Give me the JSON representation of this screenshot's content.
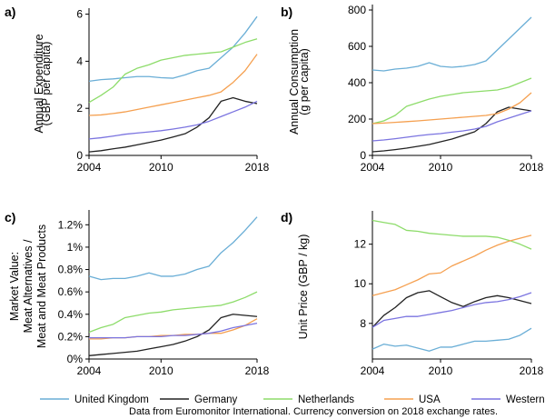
{
  "figure": {
    "note": "Data from Euromonitor International. Currency conversion on 2018 exchange rates."
  },
  "colors": {
    "United Kingdom": "#6aaed6",
    "Germany": "#222222",
    "Netherlands": "#8ddc6a",
    "USA": "#f5a050",
    "Western Europe": "#7b74e0"
  },
  "legend": [
    "United Kingdom",
    "Germany",
    "Netherlands",
    "USA",
    "Western Europe"
  ],
  "chart_data": [
    {
      "type": "line",
      "panel_label": "a)",
      "ylabel": [
        "Annual Expenditure",
        "(GBP per capita)"
      ],
      "xlim": [
        2004,
        2018
      ],
      "ylim": [
        0,
        6.1
      ],
      "xticks": [
        "2004",
        "2010",
        "2018"
      ],
      "yticks": [
        {
          "v": 0,
          "label": "0"
        },
        {
          "v": 2,
          "label": "2"
        },
        {
          "v": 4,
          "label": "4"
        },
        {
          "v": 6,
          "label": "6"
        }
      ],
      "x": [
        2004,
        2005,
        2006,
        2007,
        2008,
        2009,
        2010,
        2011,
        2012,
        2013,
        2014,
        2015,
        2016,
        2017,
        2018
      ],
      "series": [
        {
          "name": "United Kingdom",
          "values": [
            3.15,
            3.22,
            3.25,
            3.3,
            3.35,
            3.35,
            3.3,
            3.28,
            3.42,
            3.6,
            3.7,
            4.15,
            4.6,
            5.2,
            5.9
          ]
        },
        {
          "name": "Germany",
          "values": [
            0.15,
            0.2,
            0.28,
            0.35,
            0.45,
            0.55,
            0.65,
            0.78,
            0.92,
            1.2,
            1.6,
            2.3,
            2.45,
            2.3,
            2.2
          ]
        },
        {
          "name": "Netherlands",
          "values": [
            2.25,
            2.55,
            2.9,
            3.45,
            3.7,
            3.85,
            4.05,
            4.15,
            4.25,
            4.3,
            4.35,
            4.4,
            4.6,
            4.8,
            4.95
          ]
        },
        {
          "name": "USA",
          "values": [
            1.7,
            1.72,
            1.78,
            1.85,
            1.95,
            2.05,
            2.15,
            2.25,
            2.35,
            2.45,
            2.55,
            2.7,
            3.1,
            3.6,
            4.3
          ]
        },
        {
          "name": "Western Europe",
          "values": [
            0.7,
            0.75,
            0.82,
            0.9,
            0.95,
            1.0,
            1.05,
            1.12,
            1.2,
            1.3,
            1.45,
            1.65,
            1.85,
            2.05,
            2.3
          ]
        }
      ]
    },
    {
      "type": "line",
      "panel_label": "b)",
      "ylabel": [
        "Annual Consumption",
        "(g per capita)"
      ],
      "xlim": [
        2004,
        2018
      ],
      "ylim": [
        0,
        810
      ],
      "xticks": [
        "2004",
        "2010",
        "2018"
      ],
      "yticks": [
        {
          "v": 0,
          "label": "0"
        },
        {
          "v": 200,
          "label": "200"
        },
        {
          "v": 400,
          "label": "400"
        },
        {
          "v": 600,
          "label": "600"
        },
        {
          "v": 800,
          "label": "800"
        }
      ],
      "x": [
        2004,
        2005,
        2006,
        2007,
        2008,
        2009,
        2010,
        2011,
        2012,
        2013,
        2014,
        2015,
        2016,
        2017,
        2018
      ],
      "series": [
        {
          "name": "United Kingdom",
          "values": [
            470,
            465,
            475,
            480,
            490,
            510,
            490,
            485,
            490,
            500,
            520,
            580,
            640,
            700,
            760
          ]
        },
        {
          "name": "Germany",
          "values": [
            20,
            25,
            32,
            40,
            50,
            60,
            75,
            90,
            110,
            130,
            175,
            240,
            265,
            255,
            245
          ]
        },
        {
          "name": "Netherlands",
          "values": [
            175,
            190,
            220,
            270,
            290,
            310,
            325,
            335,
            345,
            350,
            355,
            360,
            375,
            400,
            425
          ]
        },
        {
          "name": "USA",
          "values": [
            175,
            178,
            182,
            186,
            190,
            195,
            200,
            205,
            210,
            215,
            220,
            230,
            255,
            290,
            345
          ]
        },
        {
          "name": "Western Europe",
          "values": [
            80,
            85,
            92,
            100,
            108,
            115,
            120,
            128,
            135,
            145,
            160,
            185,
            205,
            225,
            245
          ]
        }
      ]
    },
    {
      "type": "line",
      "panel_label": "c)",
      "ylabel": [
        "Market Value:",
        "Meat Alternatives /",
        "Meat and Meat Products"
      ],
      "xlim": [
        2004,
        2018
      ],
      "ylim": [
        0,
        1.3
      ],
      "xticks": [
        "2004",
        "2010",
        "2018"
      ],
      "yticks": [
        {
          "v": 0,
          "label": "0%"
        },
        {
          "v": 0.2,
          "label": "0.2%"
        },
        {
          "v": 0.4,
          "label": "0.4%"
        },
        {
          "v": 0.6,
          "label": "0.6%"
        },
        {
          "v": 0.8,
          "label": "0.8%"
        },
        {
          "v": 1.0,
          "label": "1%"
        },
        {
          "v": 1.2,
          "label": "1.2%"
        }
      ],
      "x": [
        2004,
        2005,
        2006,
        2007,
        2008,
        2009,
        2010,
        2011,
        2012,
        2013,
        2014,
        2015,
        2016,
        2017,
        2018
      ],
      "series": [
        {
          "name": "United Kingdom",
          "values": [
            0.74,
            0.71,
            0.72,
            0.72,
            0.74,
            0.77,
            0.74,
            0.74,
            0.76,
            0.8,
            0.83,
            0.95,
            1.04,
            1.15,
            1.27
          ]
        },
        {
          "name": "Germany",
          "values": [
            0.03,
            0.04,
            0.05,
            0.06,
            0.07,
            0.09,
            0.11,
            0.13,
            0.16,
            0.2,
            0.26,
            0.37,
            0.4,
            0.39,
            0.38
          ]
        },
        {
          "name": "Netherlands",
          "values": [
            0.24,
            0.28,
            0.31,
            0.37,
            0.39,
            0.41,
            0.42,
            0.44,
            0.45,
            0.46,
            0.47,
            0.48,
            0.51,
            0.55,
            0.6
          ]
        },
        {
          "name": "USA",
          "values": [
            0.18,
            0.18,
            0.19,
            0.19,
            0.2,
            0.2,
            0.21,
            0.21,
            0.22,
            0.22,
            0.23,
            0.23,
            0.26,
            0.3,
            0.36
          ]
        },
        {
          "name": "Western Europe",
          "values": [
            0.19,
            0.19,
            0.19,
            0.19,
            0.2,
            0.2,
            0.2,
            0.21,
            0.21,
            0.22,
            0.23,
            0.25,
            0.28,
            0.3,
            0.32
          ]
        }
      ]
    },
    {
      "type": "line",
      "panel_label": "d)",
      "ylabel": [
        "Unit Price (GBP / kg)"
      ],
      "xlim": [
        2004,
        2018
      ],
      "ylim": [
        6.2,
        13.5
      ],
      "xticks": [
        "2004",
        "2010",
        "2018"
      ],
      "yticks": [
        {
          "v": 8,
          "label": "8"
        },
        {
          "v": 10,
          "label": "10"
        },
        {
          "v": 12,
          "label": "12"
        }
      ],
      "x": [
        2004,
        2005,
        2006,
        2007,
        2008,
        2009,
        2010,
        2011,
        2012,
        2013,
        2014,
        2015,
        2016,
        2017,
        2018
      ],
      "series": [
        {
          "name": "United Kingdom",
          "values": [
            6.7,
            6.95,
            6.85,
            6.9,
            6.75,
            6.6,
            6.8,
            6.8,
            6.95,
            7.1,
            7.1,
            7.15,
            7.2,
            7.4,
            7.75
          ]
        },
        {
          "name": "Germany",
          "values": [
            7.8,
            8.4,
            8.8,
            9.3,
            9.55,
            9.65,
            9.35,
            9.05,
            8.85,
            9.1,
            9.3,
            9.4,
            9.3,
            9.15,
            9.0
          ]
        },
        {
          "name": "Netherlands",
          "values": [
            13.2,
            13.1,
            13.0,
            12.7,
            12.65,
            12.55,
            12.5,
            12.45,
            12.4,
            12.4,
            12.4,
            12.35,
            12.2,
            12.0,
            11.75
          ]
        },
        {
          "name": "USA",
          "values": [
            9.4,
            9.55,
            9.7,
            9.95,
            10.2,
            10.5,
            10.55,
            10.9,
            11.15,
            11.4,
            11.7,
            11.95,
            12.15,
            12.3,
            12.45
          ]
        },
        {
          "name": "Western Europe",
          "values": [
            7.8,
            8.15,
            8.25,
            8.35,
            8.35,
            8.45,
            8.55,
            8.65,
            8.8,
            8.95,
            9.05,
            9.1,
            9.2,
            9.35,
            9.55
          ]
        }
      ]
    }
  ]
}
